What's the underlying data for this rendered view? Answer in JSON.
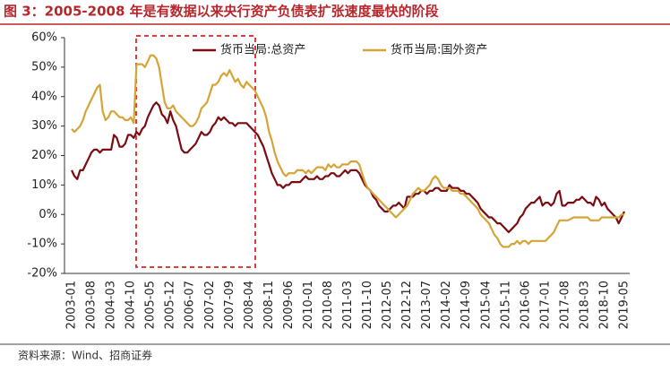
{
  "chart_data": {
    "type": "line",
    "title": "图 3：2005-2008 年是有数据以来央行资产负债表扩张速度最快的阶段",
    "source": "资料来源：Wind、招商证券",
    "categories": [
      "2003-01",
      null,
      null,
      null,
      null,
      null,
      null,
      "2003-08",
      null,
      null,
      null,
      null,
      null,
      null,
      "2004-03",
      null,
      null,
      null,
      null,
      null,
      null,
      "2004-10",
      null,
      null,
      null,
      null,
      null,
      null,
      "2005-05",
      null,
      null,
      null,
      null,
      null,
      null,
      "2005-12",
      null,
      null,
      null,
      null,
      null,
      null,
      "2006-07",
      null,
      null,
      null,
      null,
      null,
      null,
      "2007-02",
      null,
      null,
      null,
      null,
      null,
      null,
      "2007-09",
      null,
      null,
      null,
      null,
      null,
      null,
      "2008-04",
      null,
      null,
      null,
      null,
      null,
      null,
      "2008-11",
      null,
      null,
      null,
      null,
      null,
      null,
      "2009-06",
      null,
      null,
      null,
      null,
      null,
      null,
      "2010-01",
      null,
      null,
      null,
      null,
      null,
      null,
      "2010-08",
      null,
      null,
      null,
      null,
      null,
      null,
      "2011-03",
      null,
      null,
      null,
      null,
      null,
      null,
      "2011-10",
      null,
      null,
      null,
      null,
      null,
      null,
      "2012-05",
      null,
      null,
      null,
      null,
      null,
      null,
      "2012-12",
      null,
      null,
      null,
      null,
      null,
      null,
      "2013-07",
      null,
      null,
      null,
      null,
      null,
      null,
      "2014-02",
      null,
      null,
      null,
      null,
      null,
      null,
      "2014-09",
      null,
      null,
      null,
      null,
      null,
      null,
      "2015-04",
      null,
      null,
      null,
      null,
      null,
      null,
      "2015-11",
      null,
      null,
      null,
      null,
      null,
      null,
      "2016-06",
      null,
      null,
      null,
      null,
      null,
      null,
      "2017-01",
      null,
      null,
      null,
      null,
      null,
      null,
      "2017-08",
      null,
      null,
      null,
      null,
      null,
      null,
      "2018-03",
      null,
      null,
      null,
      null,
      null,
      null,
      "2018-10",
      null,
      null,
      null,
      null,
      null,
      null,
      "2019-05"
    ],
    "series": [
      {
        "name": "货币当局:总资产",
        "color": "#7b0c12",
        "values": [
          15,
          13,
          12,
          15,
          15,
          17,
          19,
          21,
          22,
          22,
          21,
          22,
          22,
          22,
          22,
          27,
          26,
          23,
          23,
          24,
          27,
          27,
          26,
          28,
          27,
          29,
          30,
          33,
          35,
          37,
          38,
          37,
          34,
          33,
          31,
          35,
          32,
          30,
          26,
          22,
          21,
          21,
          22,
          23,
          24,
          26,
          28,
          27,
          27,
          28,
          30,
          31,
          33,
          32,
          33,
          32,
          31,
          31,
          30,
          31,
          31,
          31,
          31,
          30,
          29,
          28,
          27,
          25,
          23,
          20,
          17,
          14,
          12,
          10,
          10,
          9,
          10,
          10,
          11,
          11,
          11,
          11,
          12,
          13,
          12,
          12,
          12,
          13,
          12,
          12,
          13,
          13,
          14,
          14,
          13,
          13,
          14,
          15,
          14,
          15,
          15,
          15,
          14,
          12,
          10,
          9,
          8,
          6,
          5,
          3,
          2,
          1,
          1,
          2,
          3,
          3,
          4,
          3,
          2,
          6,
          6,
          6,
          7,
          7,
          8,
          8,
          7,
          8,
          8,
          9,
          9,
          8,
          8,
          8,
          10,
          9,
          9,
          9,
          8,
          8,
          7,
          7,
          6,
          5,
          4,
          2,
          1,
          0,
          -1,
          -1,
          -2,
          -3,
          -3,
          -4,
          -5,
          -6,
          -5,
          -4,
          -3,
          -1,
          0,
          2,
          3,
          4,
          4,
          5,
          6,
          3,
          4,
          4,
          3,
          4,
          7,
          8,
          3,
          3,
          4,
          4,
          4,
          5,
          5,
          6,
          5,
          4,
          4,
          3,
          6,
          5,
          3,
          4,
          2,
          1,
          0,
          -1,
          -3,
          -1,
          1
        ]
      },
      {
        "name": "货币当局:国外资产",
        "color": "#d4a536",
        "values": [
          29,
          28,
          29,
          30,
          32,
          35,
          37,
          39,
          41,
          43,
          44,
          35,
          32,
          33,
          35,
          35,
          34,
          33,
          33,
          32,
          32,
          33,
          31,
          51,
          51,
          51,
          50,
          52,
          54,
          54,
          53,
          50,
          44,
          38,
          36,
          36,
          37,
          35,
          34,
          33,
          32,
          31,
          30,
          30,
          31,
          33,
          36,
          37,
          38,
          41,
          44,
          44,
          45,
          47,
          48,
          47,
          49,
          47,
          45,
          46,
          44,
          43,
          45,
          44,
          43,
          42,
          40,
          38,
          36,
          33,
          28,
          25,
          21,
          18,
          16,
          14,
          13,
          14,
          14,
          14,
          15,
          15,
          15,
          14,
          15,
          14,
          15,
          16,
          16,
          16,
          15,
          17,
          16,
          17,
          16,
          16,
          17,
          17,
          17,
          18,
          18,
          18,
          17,
          14,
          11,
          9,
          8,
          7,
          6,
          5,
          4,
          3,
          2,
          1,
          0,
          -1,
          0,
          1,
          2,
          3,
          5,
          7,
          8,
          9,
          8,
          8,
          9,
          10,
          12,
          13,
          12,
          10,
          9,
          9,
          9,
          8,
          8,
          8,
          7,
          7,
          6,
          5,
          4,
          3,
          2,
          0,
          -1,
          -2,
          -3,
          -5,
          -7,
          -8,
          -10,
          -11,
          -11,
          -11,
          -10,
          -10,
          -9,
          -10,
          -9,
          -9,
          -10,
          -9,
          -9,
          -9,
          -9,
          -9,
          -9,
          -8,
          -7,
          -6,
          -4,
          -2,
          -2,
          -2,
          -2,
          -1.5,
          -1,
          -1,
          -1,
          -1,
          -1,
          -1,
          -2,
          -2,
          -2,
          -2,
          -1,
          -1,
          -1,
          -1,
          -1,
          -1,
          -1,
          0,
          0
        ]
      }
    ],
    "ylim": [
      -20,
      60
    ],
    "yticks": [
      {
        "value": -20,
        "label": "-20%"
      },
      {
        "value": -10,
        "label": "-10%"
      },
      {
        "value": 0,
        "label": "0%"
      },
      {
        "value": 10,
        "label": "10%"
      },
      {
        "value": 20,
        "label": "20%"
      },
      {
        "value": 30,
        "label": "30%"
      },
      {
        "value": 40,
        "label": "40%"
      },
      {
        "value": 50,
        "label": "50%"
      },
      {
        "value": 60,
        "label": "60%"
      }
    ],
    "grid": false
  }
}
